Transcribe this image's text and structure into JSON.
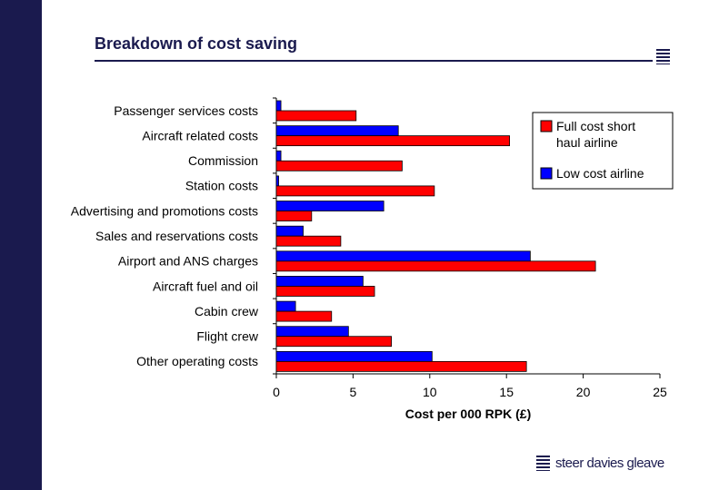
{
  "title": "Breakdown of cost saving",
  "logo_text": "steer davies gleave",
  "chart_data": {
    "type": "bar",
    "orientation": "horizontal",
    "title": "Breakdown of cost saving",
    "xlabel": "Cost per 000 RPK (£)",
    "xlim": [
      0,
      25
    ],
    "xticks": [
      "0",
      "5",
      "10",
      "15",
      "20",
      "25"
    ],
    "legend_position": "top-right",
    "categories": [
      "Passenger services costs",
      "Aircraft related costs",
      "Commission",
      "Station costs",
      "Advertising and promotions costs",
      "Sales and reservations costs",
      "Airport and ANS charges",
      "Aircraft fuel and oil",
      "Cabin crew",
      "Flight crew",
      "Other operating costs"
    ],
    "series": [
      {
        "name": "Low cost airline",
        "color": "#0000ff",
        "values": [
          0.3,
          7.95,
          0.3,
          0.15,
          7.0,
          1.75,
          16.55,
          5.65,
          1.25,
          4.7,
          10.15
        ]
      },
      {
        "name": "Full cost short haul airline",
        "color": "#ff0000",
        "values": [
          5.2,
          15.2,
          8.2,
          10.3,
          2.3,
          4.2,
          20.8,
          6.4,
          3.6,
          7.5,
          16.3
        ]
      }
    ]
  }
}
